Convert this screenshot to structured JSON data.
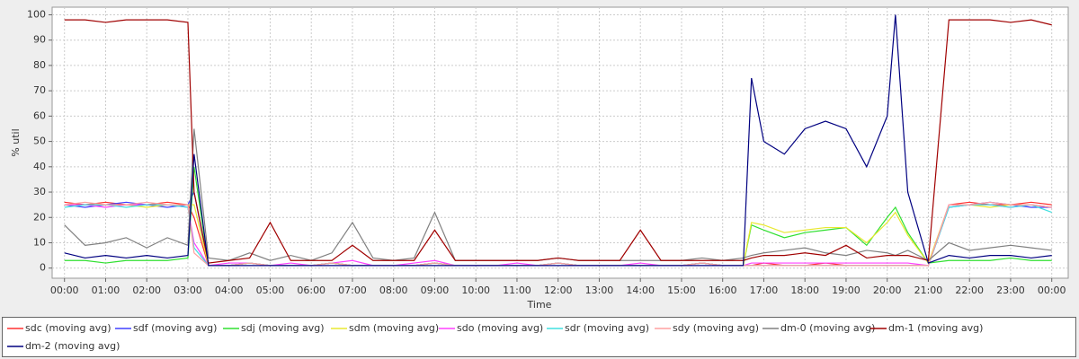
{
  "chart_data": {
    "type": "line",
    "x_label": "Time",
    "y_label": "% util",
    "x": [
      0,
      0.5,
      1,
      1.5,
      2,
      2.5,
      3,
      3.15,
      3.5,
      4,
      4.5,
      5,
      5.5,
      6,
      6.5,
      7,
      7.5,
      8,
      8.5,
      9,
      9.5,
      10,
      10.5,
      11,
      11.5,
      12,
      12.5,
      13,
      13.5,
      14,
      14.5,
      15,
      15.5,
      16,
      16.5,
      16.7,
      17,
      17.5,
      18,
      18.5,
      19,
      19.5,
      20,
      20.2,
      20.5,
      21,
      21.5,
      22,
      22.5,
      23,
      23.5,
      24
    ],
    "xlim": [
      -0.3,
      24.4
    ],
    "ylim": [
      -4,
      103
    ],
    "xticks": [
      {
        "value": 0,
        "label": "00:00"
      },
      {
        "value": 1,
        "label": "01:00"
      },
      {
        "value": 2,
        "label": "02:00"
      },
      {
        "value": 3,
        "label": "03:00"
      },
      {
        "value": 4,
        "label": "04:00"
      },
      {
        "value": 5,
        "label": "05:00"
      },
      {
        "value": 6,
        "label": "06:00"
      },
      {
        "value": 7,
        "label": "07:00"
      },
      {
        "value": 8,
        "label": "08:00"
      },
      {
        "value": 9,
        "label": "09:00"
      },
      {
        "value": 10,
        "label": "10:00"
      },
      {
        "value": 11,
        "label": "11:00"
      },
      {
        "value": 12,
        "label": "12:00"
      },
      {
        "value": 13,
        "label": "13:00"
      },
      {
        "value": 14,
        "label": "14:00"
      },
      {
        "value": 15,
        "label": "15:00"
      },
      {
        "value": 16,
        "label": "16:00"
      },
      {
        "value": 17,
        "label": "17:00"
      },
      {
        "value": 18,
        "label": "18:00"
      },
      {
        "value": 19,
        "label": "19:00"
      },
      {
        "value": 20,
        "label": "20:00"
      },
      {
        "value": 21,
        "label": "21:00"
      },
      {
        "value": 22,
        "label": "22:00"
      },
      {
        "value": 23,
        "label": "23:00"
      },
      {
        "value": 24,
        "label": "00:00"
      }
    ],
    "yticks": [
      0,
      10,
      20,
      30,
      40,
      50,
      60,
      70,
      80,
      90,
      100
    ],
    "grid": true,
    "series": [
      {
        "name": "sdc (moving avg)",
        "color": "#ff3030",
        "values": [
          26,
          25,
          26,
          25,
          25,
          26,
          25,
          20,
          1,
          1,
          2,
          1,
          1,
          1,
          2,
          1,
          1,
          1,
          1,
          2,
          1,
          1,
          1,
          1,
          1,
          2,
          1,
          1,
          1,
          1,
          1,
          1,
          2,
          1,
          1,
          1,
          2,
          1,
          1,
          2,
          1,
          1,
          1,
          1,
          1,
          1,
          25,
          26,
          25,
          25,
          26,
          25
        ]
      },
      {
        "name": "sdf (moving avg)",
        "color": "#4040ff",
        "values": [
          25,
          24,
          25,
          26,
          25,
          24,
          25,
          30,
          1,
          1,
          2,
          1,
          1,
          1,
          2,
          1,
          1,
          1,
          1,
          2,
          1,
          1,
          1,
          1,
          1,
          2,
          1,
          1,
          1,
          1,
          1,
          1,
          2,
          1,
          1,
          1,
          1,
          1,
          1,
          1,
          1,
          1,
          1,
          1,
          1,
          1,
          24,
          25,
          26,
          25,
          24,
          24
        ]
      },
      {
        "name": "sdj (moving avg)",
        "color": "#30e030",
        "values": [
          3,
          3,
          2,
          3,
          3,
          3,
          4,
          40,
          1,
          1,
          2,
          1,
          1,
          1,
          2,
          1,
          1,
          1,
          1,
          2,
          1,
          1,
          1,
          1,
          1,
          2,
          1,
          1,
          1,
          1,
          1,
          1,
          2,
          1,
          1,
          17,
          15,
          12,
          14,
          15,
          16,
          9,
          20,
          24,
          14,
          2,
          3,
          3,
          3,
          4,
          3,
          3
        ]
      },
      {
        "name": "sdm (moving avg)",
        "color": "#e8e830",
        "values": [
          25,
          25,
          25,
          25,
          24,
          25,
          25,
          25,
          1,
          1,
          2,
          1,
          1,
          1,
          2,
          1,
          1,
          1,
          1,
          2,
          1,
          1,
          1,
          1,
          1,
          2,
          1,
          1,
          1,
          1,
          1,
          1,
          2,
          1,
          1,
          18,
          17,
          14,
          15,
          16,
          16,
          10,
          18,
          22,
          13,
          2,
          25,
          25,
          24,
          25,
          25,
          24
        ]
      },
      {
        "name": "sdo (moving avg)",
        "color": "#ff40ff",
        "values": [
          25,
          25,
          24,
          25,
          25,
          25,
          24,
          10,
          1,
          2,
          2,
          1,
          2,
          1,
          2,
          3,
          1,
          1,
          2,
          3,
          1,
          1,
          1,
          2,
          1,
          2,
          1,
          1,
          1,
          2,
          1,
          1,
          2,
          1,
          1,
          2,
          2,
          2,
          2,
          2,
          2,
          2,
          2,
          2,
          2,
          1,
          25,
          25,
          25,
          24,
          25,
          24
        ]
      },
      {
        "name": "sdr (moving avg)",
        "color": "#40e0e0",
        "values": [
          24,
          25,
          25,
          24,
          25,
          25,
          24,
          8,
          1,
          1,
          2,
          1,
          1,
          1,
          2,
          1,
          1,
          1,
          1,
          2,
          1,
          1,
          1,
          1,
          1,
          2,
          1,
          1,
          1,
          1,
          1,
          1,
          2,
          1,
          1,
          1,
          1,
          1,
          1,
          1,
          1,
          1,
          1,
          1,
          1,
          1,
          24,
          25,
          25,
          24,
          25,
          22
        ]
      },
      {
        "name": "sdy (moving avg)",
        "color": "#ffa0a0",
        "values": [
          25,
          26,
          25,
          25,
          26,
          25,
          25,
          6,
          1,
          1,
          2,
          1,
          1,
          1,
          2,
          1,
          1,
          1,
          1,
          2,
          1,
          1,
          1,
          1,
          1,
          2,
          1,
          1,
          1,
          1,
          1,
          1,
          2,
          1,
          1,
          1,
          1,
          1,
          1,
          1,
          1,
          1,
          1,
          1,
          1,
          1,
          25,
          25,
          26,
          25,
          25,
          24
        ]
      },
      {
        "name": "dm-0 (moving avg)",
        "color": "#808080",
        "values": [
          17,
          9,
          10,
          12,
          8,
          12,
          9,
          55,
          4,
          3,
          6,
          3,
          5,
          3,
          6,
          18,
          4,
          3,
          4,
          22,
          3,
          3,
          3,
          3,
          3,
          4,
          3,
          3,
          3,
          3,
          3,
          3,
          4,
          3,
          4,
          5,
          6,
          7,
          8,
          6,
          5,
          7,
          6,
          5,
          7,
          3,
          10,
          7,
          8,
          9,
          8,
          7
        ]
      },
      {
        "name": "dm-1 (moving avg)",
        "color": "#a00000",
        "values": [
          98,
          98,
          97,
          98,
          98,
          98,
          97,
          30,
          2,
          3,
          4,
          18,
          3,
          3,
          3,
          9,
          3,
          3,
          3,
          15,
          3,
          3,
          3,
          3,
          3,
          4,
          3,
          3,
          3,
          15,
          3,
          3,
          3,
          3,
          3,
          4,
          5,
          5,
          6,
          5,
          9,
          4,
          5,
          5,
          5,
          3,
          98,
          98,
          98,
          97,
          98,
          96
        ]
      },
      {
        "name": "dm-2 (moving avg)",
        "color": "#000080",
        "values": [
          6,
          4,
          5,
          4,
          5,
          4,
          5,
          45,
          1,
          1,
          1,
          1,
          1,
          1,
          1,
          1,
          1,
          1,
          1,
          1,
          1,
          1,
          1,
          1,
          1,
          1,
          1,
          1,
          1,
          1,
          1,
          1,
          1,
          1,
          1,
          75,
          50,
          45,
          55,
          58,
          55,
          40,
          60,
          100,
          30,
          2,
          5,
          4,
          5,
          5,
          4,
          5
        ]
      }
    ]
  }
}
